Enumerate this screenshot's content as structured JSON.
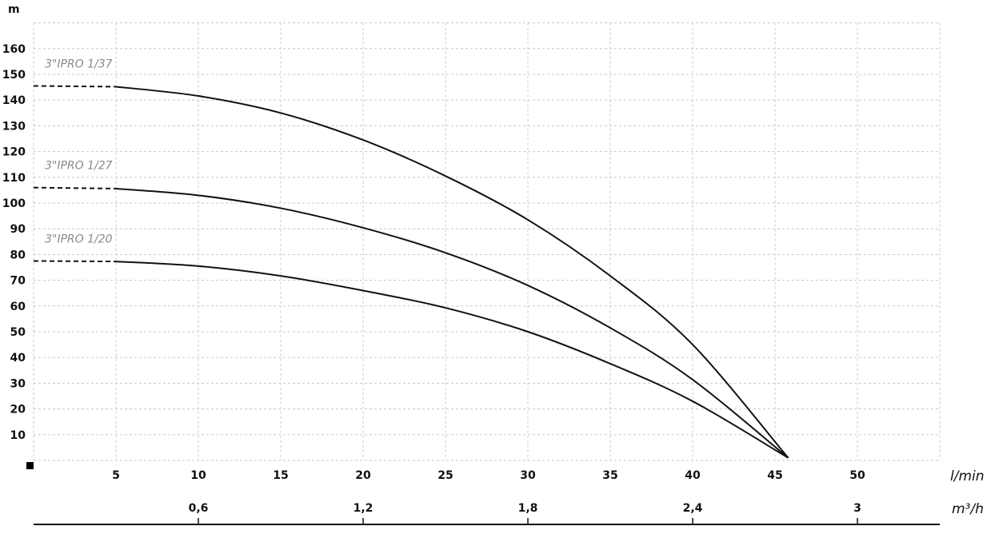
{
  "chart_data": {
    "type": "line",
    "ylabel": "m",
    "xlabel": "l/min",
    "x2label": "m³/h",
    "xlim": [
      0,
      55
    ],
    "ylim": [
      0,
      170
    ],
    "grid": true,
    "yticks": [
      10,
      20,
      30,
      40,
      50,
      60,
      70,
      80,
      90,
      100,
      110,
      120,
      130,
      140,
      150,
      160
    ],
    "xticks": [
      5,
      10,
      15,
      20,
      25,
      30,
      35,
      40,
      45,
      50
    ],
    "x2ticks": [
      {
        "label": "0,6",
        "lmin": 10
      },
      {
        "label": "1,2",
        "lmin": 20
      },
      {
        "label": "1,8",
        "lmin": 30
      },
      {
        "label": "2,4",
        "lmin": 40
      },
      {
        "label": "3",
        "lmin": 50
      }
    ],
    "dashed_below_x": 5,
    "series": [
      {
        "name": "3\"IPRO 1/37",
        "x": [
          0,
          5,
          10,
          15,
          20,
          25,
          30,
          35,
          40,
          45.8
        ],
        "y": [
          145.5,
          145.2,
          141.6,
          135,
          124.5,
          110.5,
          93.5,
          71.7,
          45,
          1
        ]
      },
      {
        "name": "3\"IPRO 1/27",
        "x": [
          0,
          5,
          10,
          15,
          20,
          25,
          30,
          35,
          40,
          45.8
        ],
        "y": [
          106,
          105.6,
          103,
          98,
          90.4,
          80.7,
          68,
          51.5,
          31.4,
          1
        ]
      },
      {
        "name": "3\"IPRO 1/20",
        "x": [
          0,
          5,
          10,
          15,
          20,
          25,
          30,
          35,
          40,
          45.8
        ],
        "y": [
          77.5,
          77.3,
          75.5,
          71.7,
          66,
          59.3,
          50,
          37.6,
          23,
          1
        ]
      }
    ]
  }
}
